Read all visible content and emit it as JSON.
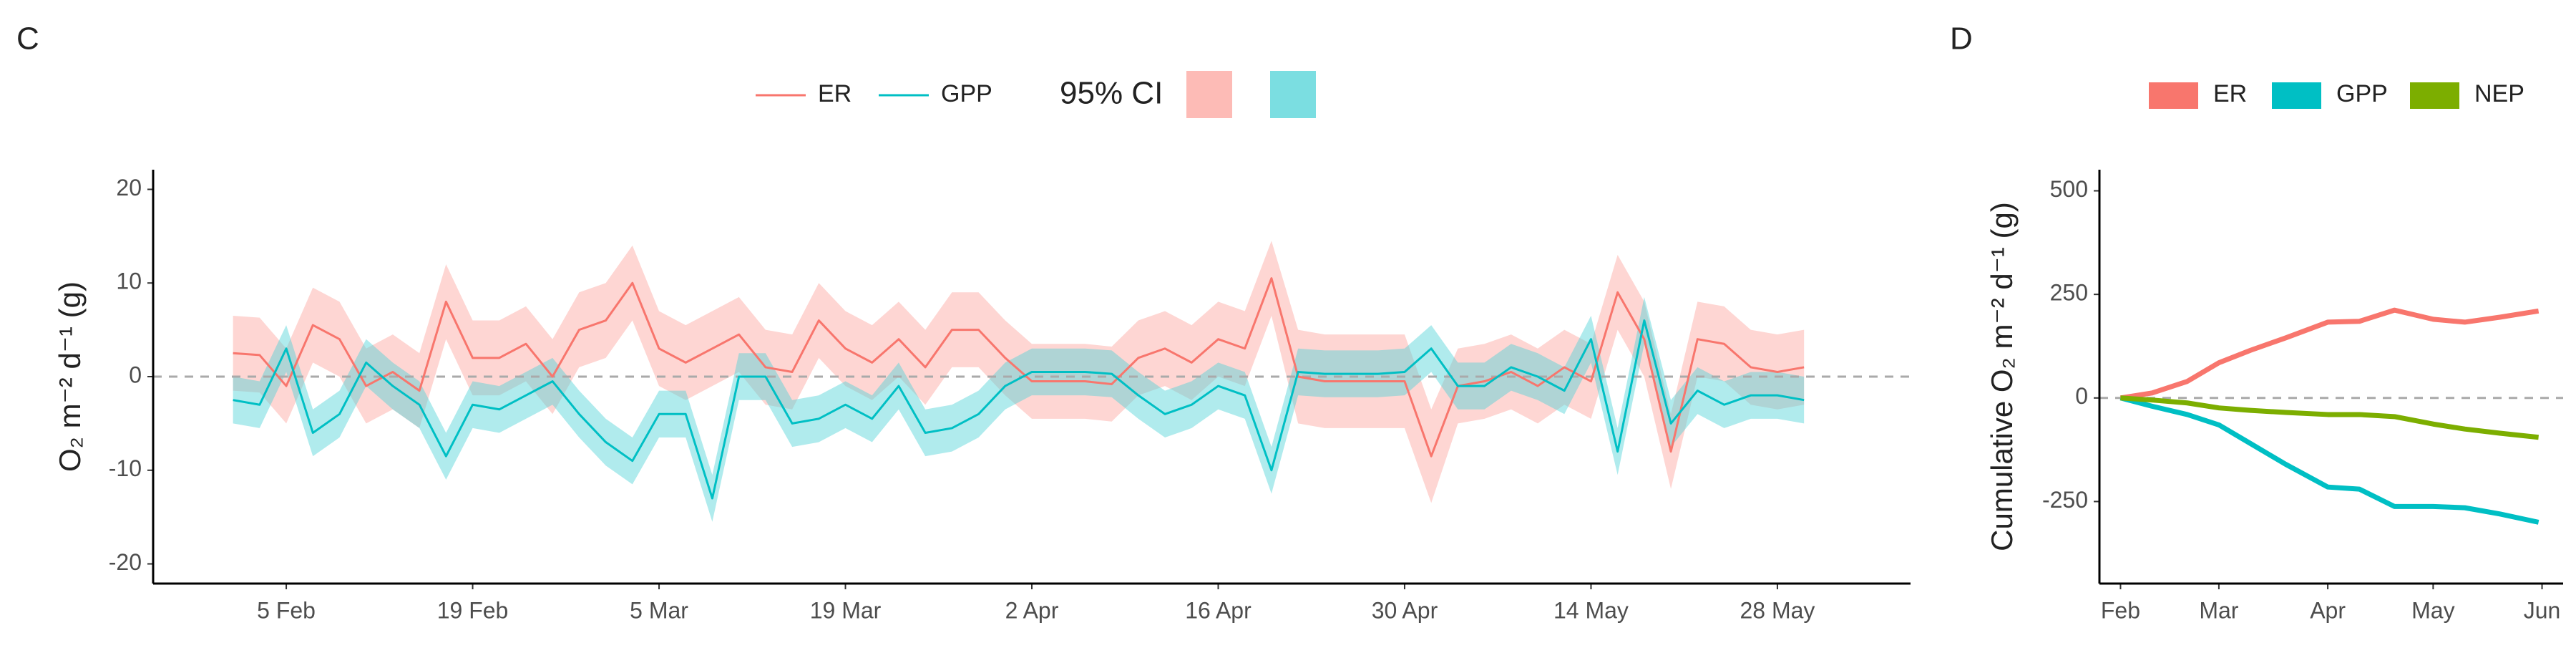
{
  "chart_data": [
    {
      "type": "line",
      "panel_label": "C",
      "ylabel": "O₂ m⁻² d⁻¹ (g)",
      "ci_label": "95% CI",
      "legend": "top",
      "legend_key": "line",
      "grid": false,
      "reference_line": 0,
      "x": [
        "02-01",
        "02-03",
        "02-05",
        "02-07",
        "02-09",
        "02-11",
        "02-13",
        "02-15",
        "02-17",
        "02-19",
        "02-21",
        "02-23",
        "02-25",
        "02-27",
        "03-01",
        "03-03",
        "03-05",
        "03-07",
        "03-09",
        "03-11",
        "03-13",
        "03-15",
        "03-17",
        "03-19",
        "03-21",
        "03-23",
        "03-25",
        "03-27",
        "03-29",
        "03-31",
        "04-02",
        "04-04",
        "04-06",
        "04-08",
        "04-10",
        "04-12",
        "04-14",
        "04-16",
        "04-18",
        "04-20",
        "04-22",
        "04-24",
        "04-26",
        "04-28",
        "04-30",
        "05-02",
        "05-04",
        "05-06",
        "05-08",
        "05-10",
        "05-12",
        "05-14",
        "05-16",
        "05-18",
        "05-20",
        "05-22",
        "05-24",
        "05-26",
        "05-28",
        "05-30"
      ],
      "xlim": [
        "01-26",
        "06-07"
      ],
      "xticks": [
        {
          "value": "02-05",
          "label": "5 Feb"
        },
        {
          "value": "02-19",
          "label": "19 Feb"
        },
        {
          "value": "03-05",
          "label": "5 Mar"
        },
        {
          "value": "03-19",
          "label": "19 Mar"
        },
        {
          "value": "04-02",
          "label": "2 Apr"
        },
        {
          "value": "04-16",
          "label": "16 Apr"
        },
        {
          "value": "04-30",
          "label": "30 Apr"
        },
        {
          "value": "05-14",
          "label": "14 May"
        },
        {
          "value": "05-28",
          "label": "28 May"
        }
      ],
      "ylim": [
        -22.1,
        22.1
      ],
      "yticks": [
        -20,
        -10,
        0,
        10,
        20
      ],
      "series": [
        {
          "name": "ER",
          "color": "#F8766D",
          "ci_color": "#FCA49E",
          "values": [
            2.5,
            2.3,
            -1,
            5.5,
            4,
            -1,
            0.5,
            -1.5,
            8,
            2,
            2,
            3.5,
            0,
            5,
            6,
            10,
            3,
            1.5,
            3,
            4.5,
            1,
            0.5,
            6,
            3,
            1.5,
            4,
            1,
            5,
            5,
            2,
            -0.5,
            -0.5,
            -0.5,
            -0.8,
            2,
            3,
            1.5,
            4,
            3,
            10.5,
            0,
            -0.5,
            -0.5,
            -0.5,
            -0.5,
            -8.5,
            -1,
            -0.5,
            0.5,
            -1,
            1,
            -0.5,
            9,
            4,
            -8,
            4,
            3.5,
            1,
            0.5,
            1
          ],
          "upper": [
            6.5,
            6.3,
            3,
            9.5,
            8,
            3,
            4.5,
            2.5,
            12,
            6,
            6,
            7.5,
            4,
            9,
            10,
            14,
            7,
            5.5,
            7,
            8.5,
            5,
            4.5,
            10,
            7,
            5.5,
            8,
            5,
            9,
            9,
            6,
            3.5,
            3.5,
            3.5,
            3.2,
            6,
            7,
            5.5,
            8,
            7,
            14.5,
            5,
            4.5,
            4.5,
            4.5,
            4.5,
            -3.5,
            3,
            3.5,
            4.5,
            3,
            5,
            3.5,
            13,
            8,
            -4,
            8,
            7.5,
            5,
            4.5,
            5
          ],
          "lower": [
            -1.5,
            -1.7,
            -5,
            1.5,
            0,
            -5,
            -3.5,
            -5.5,
            4,
            -2,
            -2,
            -0.5,
            -4,
            1,
            2,
            6,
            -1,
            -2.5,
            -1,
            0.5,
            -3,
            -3.5,
            2,
            -1,
            -2.5,
            0,
            -3,
            1,
            1,
            -2,
            -4.5,
            -4.5,
            -4.5,
            -4.8,
            -2,
            -1,
            -2.5,
            0,
            -1,
            6.5,
            -5,
            -5.5,
            -5.5,
            -5.5,
            -5.5,
            -13.5,
            -5,
            -4.5,
            -3.5,
            -5,
            -3,
            -4.5,
            5,
            0,
            -12,
            0,
            -0.5,
            -3,
            -3.5,
            -3
          ]
        },
        {
          "name": "GPP",
          "color": "#00BFC4",
          "ci_color": "#4FD3D7",
          "values": [
            -2.5,
            -3,
            3,
            -6,
            -4,
            1.5,
            -1,
            -3,
            -8.5,
            -3,
            -3.5,
            -2,
            -0.5,
            -4,
            -7,
            -9,
            -4,
            -4,
            -13,
            0,
            0,
            -5,
            -4.5,
            -3,
            -4.5,
            -1,
            -6,
            -5.5,
            -4,
            -1,
            0.5,
            0.5,
            0.5,
            0.3,
            -2,
            -4,
            -3,
            -1,
            -2,
            -10,
            0.5,
            0.3,
            0.3,
            0.3,
            0.5,
            3,
            -1,
            -1,
            1,
            0,
            -1.5,
            4,
            -8,
            6,
            -5,
            -1.5,
            -3,
            -2,
            -2,
            -2.5
          ],
          "upper": [
            0,
            -0.5,
            5.5,
            -3.5,
            -1.5,
            4,
            1.5,
            -0.5,
            -6,
            -0.5,
            -1,
            0.5,
            2,
            -1.5,
            -4.5,
            -6.5,
            -1.5,
            -1.5,
            -10.5,
            2.5,
            2.5,
            -2.5,
            -2,
            -0.5,
            -2,
            1.5,
            -3.5,
            -3,
            -1.5,
            1.5,
            3,
            3,
            3,
            2.8,
            0.5,
            -1.5,
            -0.5,
            1.5,
            0.5,
            -7.5,
            3,
            2.8,
            2.8,
            2.8,
            3,
            5.5,
            1.5,
            1.5,
            3.5,
            2.5,
            1,
            6.5,
            -5.5,
            8.5,
            -2.5,
            1,
            -0.5,
            0.5,
            0.5,
            0
          ],
          "lower": [
            -5,
            -5.5,
            0.5,
            -8.5,
            -6.5,
            -1,
            -3.5,
            -5.5,
            -11,
            -5.5,
            -6,
            -4.5,
            -3,
            -6.5,
            -9.5,
            -11.5,
            -6.5,
            -6.5,
            -15.5,
            -2.5,
            -2.5,
            -7.5,
            -7,
            -5.5,
            -7,
            -3.5,
            -8.5,
            -8,
            -6.5,
            -3.5,
            -2,
            -2,
            -2,
            -2.2,
            -4.5,
            -6.5,
            -5.5,
            -3.5,
            -4.5,
            -12.5,
            -2,
            -2.2,
            -2.2,
            -2.2,
            -2,
            0.5,
            -3.5,
            -3.5,
            -1.5,
            -2.5,
            -4,
            1.5,
            -10.5,
            3.5,
            -7.5,
            -4,
            -5.5,
            -4.5,
            -4.5,
            -5
          ]
        }
      ]
    },
    {
      "type": "line",
      "panel_label": "D",
      "ylabel": "Cumulative O₂ m⁻² d⁻¹ (g)",
      "legend": "top",
      "legend_key": "fill",
      "grid": false,
      "reference_line": 0,
      "x": [
        "02-01",
        "02-10",
        "02-20",
        "03-01",
        "03-10",
        "03-20",
        "04-01",
        "04-10",
        "04-20",
        "05-01",
        "05-10",
        "05-20",
        "05-31"
      ],
      "xlim": [
        "01-26",
        "06-07"
      ],
      "xticks": [
        {
          "value": "02-01",
          "label": "Feb"
        },
        {
          "value": "03-01",
          "label": "Mar"
        },
        {
          "value": "04-01",
          "label": "Apr"
        },
        {
          "value": "05-01",
          "label": "May"
        },
        {
          "value": "06-01",
          "label": "Jun"
        }
      ],
      "ylim": [
        -448,
        551
      ],
      "yticks": [
        -250,
        0,
        250,
        500
      ],
      "series": [
        {
          "name": "ER",
          "color": "#F8766D",
          "values": [
            0,
            12,
            40,
            85,
            115,
            145,
            183,
            185,
            212,
            190,
            183,
            195,
            210
          ]
        },
        {
          "name": "GPP",
          "color": "#00BFC4",
          "values": [
            0,
            -20,
            -40,
            -65,
            -110,
            -160,
            -215,
            -220,
            -262,
            -262,
            -265,
            -280,
            -300
          ]
        },
        {
          "name": "NEP",
          "color": "#7CAE00",
          "values": [
            0,
            -5,
            -12,
            -24,
            -30,
            -35,
            -40,
            -40,
            -45,
            -63,
            -75,
            -85,
            -95
          ]
        }
      ]
    }
  ]
}
